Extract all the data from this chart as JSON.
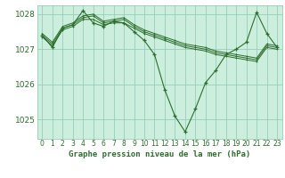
{
  "title": "Graphe pression niveau de la mer (hPa)",
  "fig_bg_color": "#ffffff",
  "plot_bg_color": "#cceedd",
  "grid_color": "#99ccbb",
  "line_color": "#2d6e2d",
  "marker_color": "#2d6e2d",
  "xlim": [
    -0.5,
    23.5
  ],
  "ylim": [
    1024.45,
    1028.25
  ],
  "yticks": [
    1025,
    1026,
    1027,
    1028
  ],
  "xticks": [
    0,
    1,
    2,
    3,
    4,
    5,
    6,
    7,
    8,
    9,
    10,
    11,
    12,
    13,
    14,
    15,
    16,
    17,
    18,
    19,
    20,
    21,
    22,
    23
  ],
  "series": [
    [
      1027.35,
      1027.1,
      1027.55,
      1027.65,
      1027.85,
      1027.85,
      1027.7,
      1027.75,
      1027.75,
      1027.6,
      1027.45,
      1027.35,
      1027.25,
      1027.15,
      1027.05,
      1027.0,
      1026.95,
      1026.85,
      1026.8,
      1026.75,
      1026.7,
      1026.65,
      1027.05,
      1027.0
    ],
    [
      1027.4,
      1027.15,
      1027.6,
      1027.7,
      1027.9,
      1027.95,
      1027.75,
      1027.8,
      1027.85,
      1027.65,
      1027.5,
      1027.4,
      1027.3,
      1027.2,
      1027.1,
      1027.05,
      1027.0,
      1026.9,
      1026.85,
      1026.8,
      1026.75,
      1026.7,
      1027.1,
      1027.05
    ],
    [
      1027.45,
      1027.2,
      1027.65,
      1027.75,
      1027.95,
      1028.0,
      1027.8,
      1027.85,
      1027.9,
      1027.7,
      1027.55,
      1027.45,
      1027.35,
      1027.25,
      1027.15,
      1027.1,
      1027.05,
      1026.95,
      1026.9,
      1026.85,
      1026.8,
      1026.75,
      1027.15,
      1027.1
    ],
    [
      1027.4,
      1027.05,
      1027.6,
      1027.7,
      1028.1,
      1027.75,
      1027.65,
      1027.8,
      1027.75,
      1027.5,
      1027.25,
      1026.85,
      1025.85,
      1025.1,
      1024.65,
      1025.3,
      1026.05,
      1026.4,
      1026.85,
      1027.0,
      1027.2,
      1028.05,
      1027.45,
      1027.05
    ]
  ]
}
